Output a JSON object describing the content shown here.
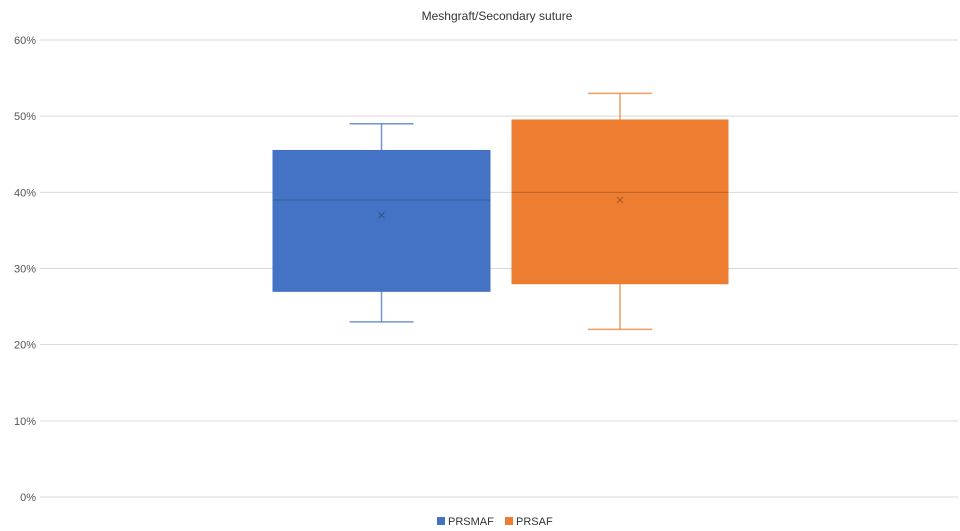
{
  "chart_data": {
    "type": "box",
    "title": "Meshgraft/Secondary suture",
    "y_ticks": [
      "0%",
      "10%",
      "20%",
      "30%",
      "40%",
      "50%",
      "60%"
    ],
    "ylim": [
      0,
      60
    ],
    "grid": true,
    "legend_position": "bottom",
    "series": [
      {
        "name": "PRSMAF",
        "color": "#4472C4",
        "min": 23,
        "q1": 27,
        "median": 39,
        "q3": 45.5,
        "max": 49,
        "mean": 37
      },
      {
        "name": "PRSAF",
        "color": "#ED7D31",
        "min": 22,
        "q1": 28,
        "median": 40,
        "q3": 49.5,
        "max": 53,
        "mean": 39
      }
    ]
  }
}
